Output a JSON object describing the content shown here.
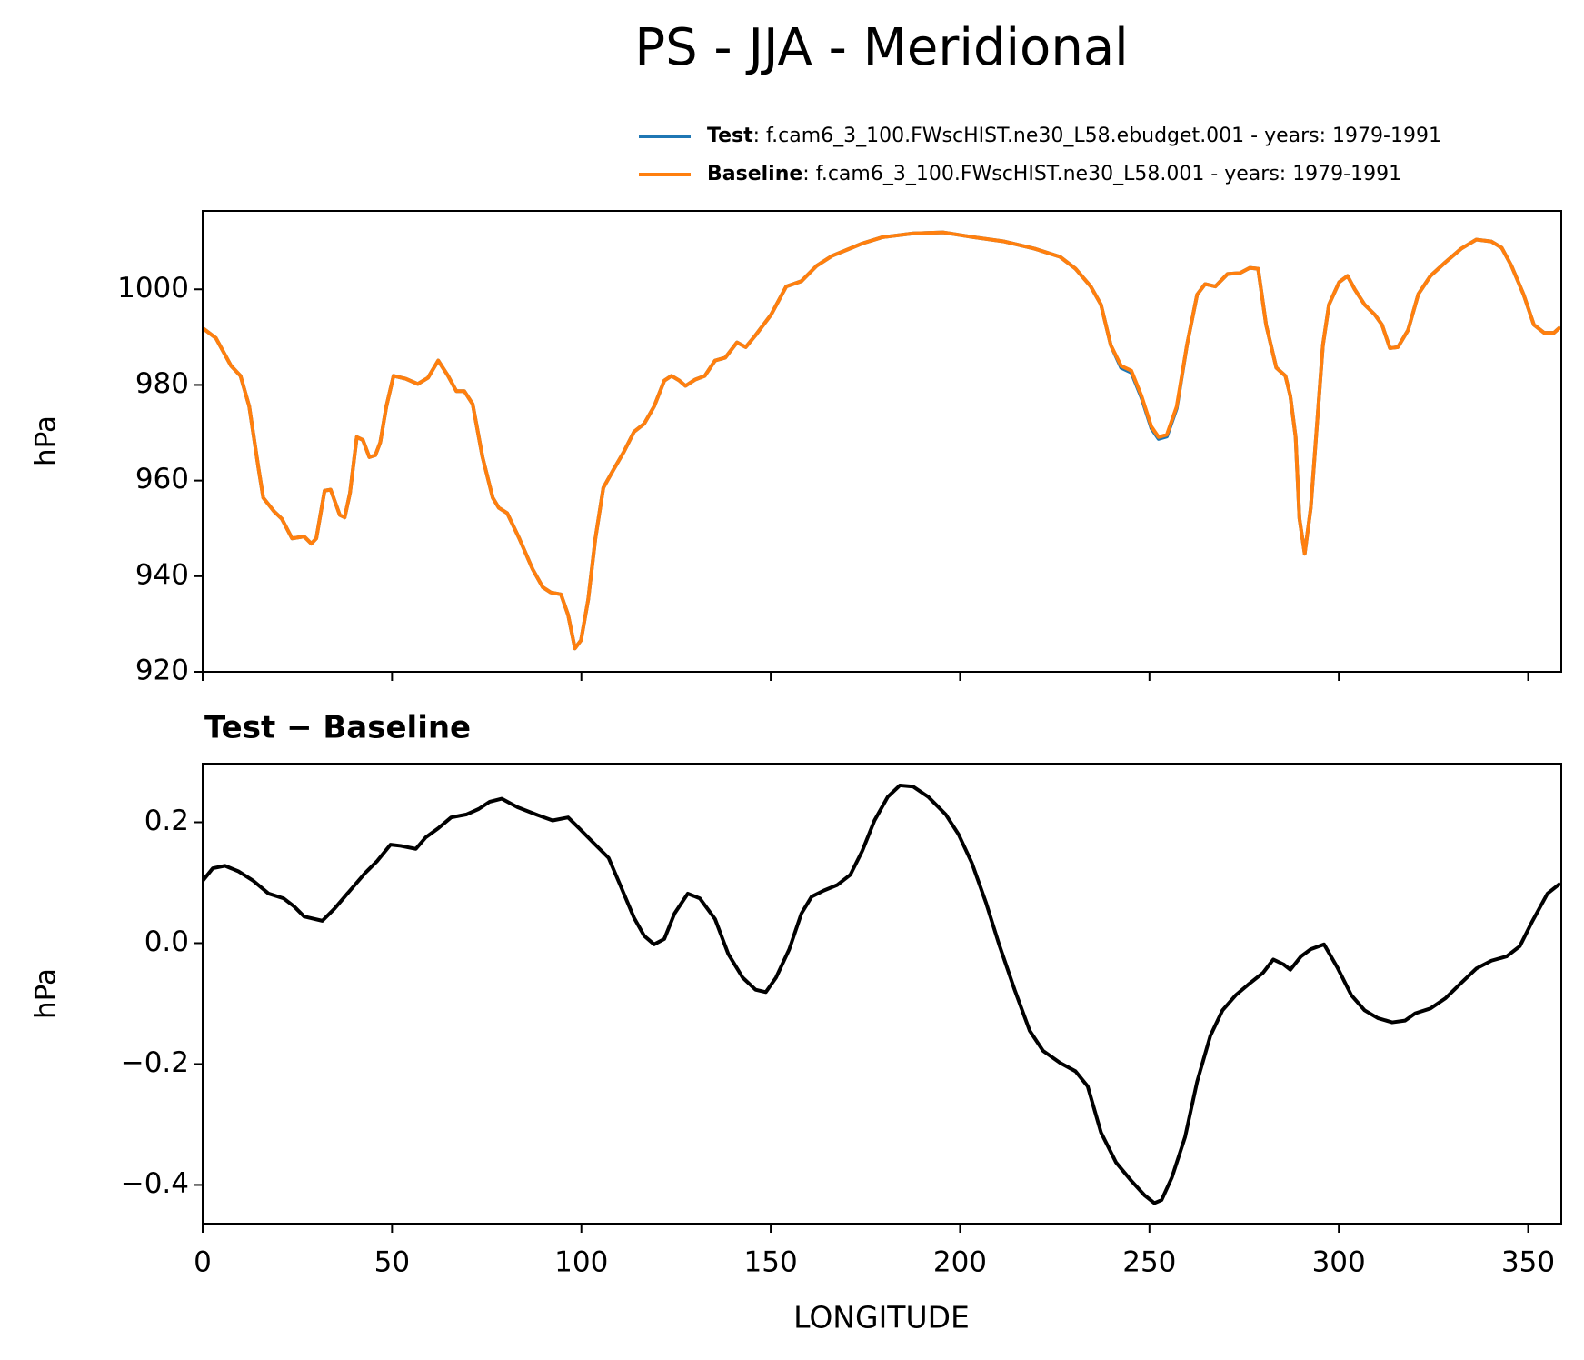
{
  "chart_data": [
    {
      "type": "line",
      "title": "PS - JJA - Meridional",
      "ylabel": "hPa",
      "x": [
        0,
        3.5,
        7.5,
        10,
        12.3,
        14.7,
        16,
        18.8,
        20.9,
        23.6,
        26.8,
        28.7,
        30,
        32.2,
        33.8,
        36.2,
        37.5,
        38.9,
        40.7,
        42.3,
        44,
        45.6,
        46.9,
        48.5,
        50.4,
        53.6,
        56.8,
        59.5,
        62.2,
        64.8,
        67,
        69.1,
        71.3,
        73.9,
        76.6,
        78.2,
        80.4,
        83.6,
        87.1,
        89.8,
        91.9,
        94.6,
        96.5,
        98.3,
        99.9,
        101.8,
        103.7,
        105.8,
        108.5,
        111.2,
        113.9,
        116.6,
        119.2,
        121.9,
        123.8,
        125.9,
        127.5,
        130,
        132.6,
        135.3,
        138,
        141.1,
        143.4,
        146,
        150.1,
        154.1,
        158.1,
        162.1,
        166.2,
        170.2,
        174.2,
        179.5,
        187.6,
        195.6,
        203.6,
        211.7,
        219.7,
        226.4,
        230.5,
        234.5,
        237.2,
        239.8,
        242.5,
        245.2,
        247.9,
        250.5,
        252.4,
        254.6,
        257.2,
        259.9,
        262.6,
        264.7,
        267.4,
        270.6,
        273.9,
        276.5,
        278.7,
        280.8,
        283.5,
        285.9,
        287.2,
        288.6,
        289.6,
        291,
        292.6,
        294.2,
        295.8,
        297.4,
        300.1,
        302.3,
        304.2,
        306.8,
        309.5,
        311.4,
        313.5,
        315.6,
        318.3,
        321,
        324.2,
        328.2,
        332.3,
        336.3,
        340.3,
        343,
        345.6,
        348.8,
        351.5,
        354.2,
        356.8,
        358.5
      ],
      "series": [
        {
          "name": "Test",
          "description": ": f.cam6_3_100.FWscHIST.ne30_L58.ebudget.001 - years: 1979-1991",
          "color": "#1f77b4",
          "values": [
            991.9,
            989.8,
            984,
            981.9,
            975.5,
            962.8,
            956.4,
            953.6,
            952,
            947.9,
            948.3,
            946.8,
            947.9,
            957.9,
            958.1,
            952.8,
            952.3,
            957.4,
            969.1,
            968.5,
            964.9,
            965.3,
            968,
            975.5,
            981.9,
            981.3,
            980.2,
            981.5,
            985.1,
            981.9,
            978.7,
            978.7,
            976,
            964.9,
            956.4,
            954.3,
            953.2,
            947.9,
            941.5,
            937.7,
            936.6,
            936.2,
            931.9,
            924.9,
            926.6,
            935.1,
            947.9,
            958.5,
            962.3,
            966,
            970.2,
            971.9,
            975.5,
            980.9,
            981.9,
            980.9,
            979.8,
            981.1,
            981.9,
            985.1,
            985.7,
            988.9,
            987.9,
            990.4,
            994.7,
            1000.6,
            1001.7,
            1004.9,
            1007,
            1008.3,
            1009.6,
            1010.9,
            1011.7,
            1011.9,
            1010.9,
            1010,
            1008.5,
            1006.8,
            1004.3,
            1000.6,
            996.8,
            988.3,
            983.6,
            982.6,
            977.3,
            970.9,
            968.7,
            969.2,
            975.1,
            988.3,
            998.9,
            1001.1,
            1000.6,
            1003.2,
            1003.4,
            1004.5,
            1004.3,
            992.6,
            983.6,
            981.9,
            977.7,
            969.1,
            952.1,
            944.7,
            954.3,
            971.3,
            988.3,
            996.8,
            1001.5,
            1002.8,
            1000,
            996.8,
            994.7,
            992.6,
            987.7,
            987.9,
            991.5,
            999,
            1002.8,
            1005.7,
            1008.5,
            1010.4,
            1010,
            1008.7,
            1004.9,
            998.9,
            992.6,
            990.9,
            990.9,
            992.1
          ]
        },
        {
          "name": "Baseline",
          "description": ": f.cam6_3_100.FWscHIST.ne30_L58.001 - years: 1979-1991",
          "color": "#ff7f0e",
          "values": [
            991.9,
            989.8,
            984,
            981.9,
            975.5,
            962.8,
            956.4,
            953.6,
            952,
            947.9,
            948.3,
            946.8,
            947.9,
            957.9,
            958.1,
            952.8,
            952.3,
            957.4,
            969.1,
            968.5,
            964.9,
            965.3,
            968,
            975.5,
            981.9,
            981.3,
            980.2,
            981.5,
            985.1,
            981.9,
            978.7,
            978.7,
            976,
            964.9,
            956.4,
            954.3,
            953.2,
            947.9,
            941.5,
            937.7,
            936.6,
            936.2,
            931.9,
            924.9,
            926.6,
            935.1,
            947.9,
            958.5,
            962.3,
            966,
            970.2,
            971.9,
            975.5,
            980.9,
            981.9,
            980.9,
            979.8,
            981.1,
            981.9,
            985.1,
            985.7,
            988.9,
            987.9,
            990.4,
            994.7,
            1000.6,
            1001.7,
            1004.9,
            1007,
            1008.3,
            1009.6,
            1010.9,
            1011.7,
            1011.9,
            1010.9,
            1010,
            1008.5,
            1006.8,
            1004.3,
            1000.6,
            996.8,
            988.3,
            984,
            983,
            977.7,
            971.3,
            969.1,
            969.6,
            975.5,
            988.3,
            998.9,
            1001.1,
            1000.6,
            1003.2,
            1003.4,
            1004.5,
            1004.3,
            992.6,
            983.6,
            981.9,
            977.7,
            969.1,
            952.1,
            944.7,
            954.3,
            971.3,
            988.3,
            996.8,
            1001.5,
            1002.8,
            1000,
            996.8,
            994.7,
            992.6,
            987.7,
            987.9,
            991.5,
            999,
            1002.8,
            1005.7,
            1008.5,
            1010.4,
            1010,
            1008.7,
            1004.9,
            998.9,
            992.6,
            990.9,
            990.9,
            992.1
          ]
        }
      ],
      "xlim": [
        0,
        358.75
      ],
      "xticks": [
        0,
        50,
        100,
        150,
        200,
        250,
        300,
        350
      ],
      "ylim": [
        920,
        1016.4
      ],
      "yticks": [
        920,
        940,
        960,
        980,
        1000
      ]
    },
    {
      "type": "line",
      "title": "Test − Baseline",
      "xlabel": "LONGITUDE",
      "ylabel": "hPa",
      "x": [
        0,
        2.7,
        5.9,
        9.4,
        13.4,
        17.4,
        21.4,
        24.1,
        26.8,
        31.6,
        34.8,
        38.9,
        42.9,
        46.1,
        49.6,
        52.3,
        56.3,
        58.9,
        62.2,
        65.6,
        69.7,
        72.9,
        75.8,
        79,
        83.1,
        88.4,
        92.4,
        96.5,
        99.1,
        103.2,
        107.2,
        110.4,
        113.9,
        116.6,
        119.2,
        121.9,
        124.6,
        128.1,
        131.3,
        135.3,
        138.8,
        142.6,
        146,
        148.7,
        151.4,
        154.9,
        158.1,
        160.8,
        164,
        167.5,
        171,
        174.2,
        177.4,
        180.9,
        184.1,
        187.6,
        191.6,
        196.2,
        199.6,
        203.1,
        206.9,
        210.3,
        214.4,
        218.4,
        221.9,
        226.4,
        230.5,
        233.7,
        237.2,
        241.2,
        245.2,
        248.7,
        251.3,
        253.2,
        255.9,
        259.4,
        262.6,
        266.1,
        269.3,
        272.8,
        276,
        280,
        282.7,
        285.4,
        287.2,
        290,
        292.6,
        296.1,
        299.6,
        303.3,
        306.8,
        310.3,
        314.1,
        317.5,
        320.2,
        324.2,
        328.2,
        332.3,
        336.3,
        340.3,
        344.3,
        347.8,
        351,
        355.1,
        358.5
      ],
      "series": [
        {
          "name": "Test − Baseline",
          "color": "#000000",
          "values": [
            0.103,
            0.124,
            0.128,
            0.119,
            0.103,
            0.082,
            0.074,
            0.061,
            0.044,
            0.037,
            0.057,
            0.087,
            0.116,
            0.136,
            0.163,
            0.161,
            0.156,
            0.175,
            0.19,
            0.208,
            0.213,
            0.222,
            0.234,
            0.239,
            0.225,
            0.212,
            0.203,
            0.208,
            0.192,
            0.166,
            0.141,
            0.094,
            0.042,
            0.012,
            -0.002,
            0.007,
            0.049,
            0.082,
            0.074,
            0.04,
            -0.018,
            -0.057,
            -0.077,
            -0.081,
            -0.057,
            -0.01,
            0.049,
            0.077,
            0.087,
            0.096,
            0.113,
            0.153,
            0.203,
            0.242,
            0.261,
            0.259,
            0.242,
            0.213,
            0.18,
            0.133,
            0.066,
            -0.002,
            -0.077,
            -0.145,
            -0.178,
            -0.198,
            -0.212,
            -0.237,
            -0.313,
            -0.363,
            -0.393,
            -0.417,
            -0.43,
            -0.425,
            -0.388,
            -0.321,
            -0.229,
            -0.153,
            -0.111,
            -0.086,
            -0.069,
            -0.049,
            -0.027,
            -0.035,
            -0.044,
            -0.022,
            -0.01,
            -0.002,
            -0.04,
            -0.086,
            -0.111,
            -0.124,
            -0.131,
            -0.128,
            -0.116,
            -0.108,
            -0.091,
            -0.066,
            -0.042,
            -0.029,
            -0.022,
            -0.005,
            0.035,
            0.082,
            0.099
          ]
        }
      ],
      "xlim": [
        0,
        358.75
      ],
      "xticks": [
        0,
        50,
        100,
        150,
        200,
        250,
        300,
        350
      ],
      "ylim": [
        -0.464,
        0.297
      ],
      "yticks": [
        {
          "value": -0.4,
          "label": "−0.4"
        },
        {
          "value": -0.2,
          "label": "−0.2"
        },
        {
          "value": 0,
          "label": "0.0"
        },
        0.2
      ]
    }
  ]
}
